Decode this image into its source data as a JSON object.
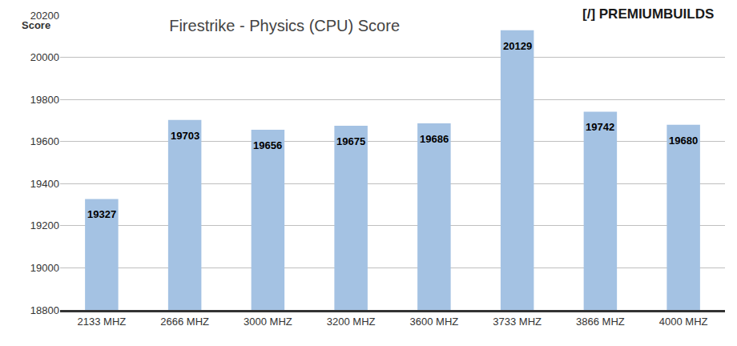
{
  "chart_data": {
    "type": "bar",
    "title": "Firestrike - Physics (CPU) Score",
    "ylabel": "Score",
    "annotations": [
      "[/] PREMIUMBUILDS"
    ],
    "categories": [
      "2133 MHZ",
      "2666 MHZ",
      "3000 MHZ",
      "3200 MHZ",
      "3600 MHZ",
      "3733 MHZ",
      "3866 MHZ",
      "4000 MHZ"
    ],
    "values": [
      19327,
      19703,
      19656,
      19675,
      19686,
      20129,
      19742,
      19680
    ],
    "color": "#a4c2e3",
    "ylim": [
      18800,
      20200
    ],
    "yticks": [
      18800,
      19000,
      19200,
      19400,
      19600,
      19800,
      20000,
      20200
    ],
    "grid": true,
    "data_labels": true
  }
}
